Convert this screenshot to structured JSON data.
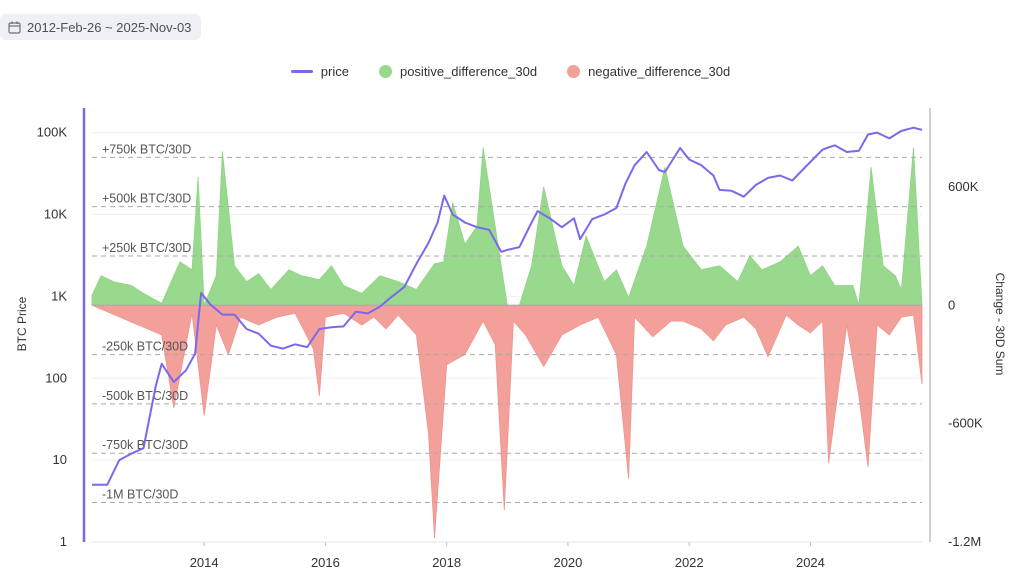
{
  "filter": {
    "date_range": "2012-Feb-26 ~ 2025-Nov-03",
    "icon": "calendar-icon"
  },
  "legend": [
    {
      "label": "price",
      "color": "#7b68ee",
      "kind": "line"
    },
    {
      "label": "positive_difference_30d",
      "color": "#98d98e",
      "kind": "dot"
    },
    {
      "label": "negative_difference_30d",
      "color": "#f4a09a",
      "kind": "dot"
    }
  ],
  "chart_data": {
    "type": "area",
    "ylabel": "BTC Price",
    "ylabel_right": "Change - 30D Sum",
    "y_left": {
      "scale": "log",
      "range": [
        1,
        200000
      ],
      "ticks": [
        "1",
        "10",
        "100",
        "1K",
        "10K",
        "100K"
      ]
    },
    "y_right": {
      "range": [
        -1200000,
        1000000
      ],
      "ticks": [
        "600K",
        "0",
        "-600K",
        "-1.2M"
      ]
    },
    "x_ticks": [
      "2014",
      "2016",
      "2018",
      "2020",
      "2022",
      "2024"
    ],
    "x_range": [
      2012.15,
      2025.84
    ],
    "grid": true,
    "legend_position": "top-center",
    "reference_lines": [
      {
        "label": "+750k BTC/30D",
        "value": 750000
      },
      {
        "label": "+500k BTC/30D",
        "value": 500000
      },
      {
        "label": "+250k BTC/30D",
        "value": 250000
      },
      {
        "label": "-250k BTC/30D",
        "value": -250000
      },
      {
        "label": "-500k BTC/30D",
        "value": -500000
      },
      {
        "label": "-750k BTC/30D",
        "value": -750000
      },
      {
        "label": "-1M BTC/30D",
        "value": -1000000
      }
    ],
    "price": {
      "x": [
        2012.15,
        2012.4,
        2012.6,
        2012.8,
        2013.0,
        2013.2,
        2013.3,
        2013.5,
        2013.7,
        2013.85,
        2013.95,
        2014.1,
        2014.3,
        2014.5,
        2014.7,
        2014.9,
        2015.1,
        2015.3,
        2015.5,
        2015.7,
        2015.9,
        2016.1,
        2016.3,
        2016.5,
        2016.7,
        2016.9,
        2017.1,
        2017.3,
        2017.5,
        2017.7,
        2017.85,
        2017.96,
        2018.1,
        2018.3,
        2018.5,
        2018.7,
        2018.9,
        2019.0,
        2019.2,
        2019.4,
        2019.5,
        2019.7,
        2019.9,
        2020.1,
        2020.2,
        2020.4,
        2020.6,
        2020.8,
        2020.95,
        2021.1,
        2021.3,
        2021.5,
        2021.6,
        2021.85,
        2022.0,
        2022.2,
        2022.4,
        2022.5,
        2022.7,
        2022.9,
        2023.1,
        2023.3,
        2023.5,
        2023.7,
        2023.9,
        2024.2,
        2024.4,
        2024.6,
        2024.8,
        2024.95,
        2025.1,
        2025.3,
        2025.5,
        2025.7,
        2025.84
      ],
      "y": [
        5,
        5,
        10,
        12,
        14,
        80,
        150,
        90,
        125,
        200,
        1100,
        800,
        600,
        600,
        400,
        350,
        250,
        230,
        260,
        240,
        400,
        420,
        430,
        650,
        620,
        750,
        1000,
        1300,
        2500,
        4500,
        8000,
        17000,
        10000,
        8000,
        7000,
        6500,
        3500,
        3700,
        4000,
        8000,
        11000,
        9000,
        7000,
        9000,
        5000,
        8800,
        10000,
        12000,
        24000,
        40000,
        58000,
        35000,
        33000,
        65000,
        47000,
        40000,
        30000,
        20000,
        19500,
        16500,
        23000,
        28000,
        30000,
        26000,
        37000,
        62000,
        70000,
        58000,
        60000,
        95000,
        100000,
        85000,
        105000,
        115000,
        108000
      ]
    },
    "positive_difference_30d": {
      "x": [
        2012.15,
        2012.3,
        2012.5,
        2012.8,
        2013.0,
        2013.3,
        2013.6,
        2013.8,
        2013.9,
        2014.0,
        2014.2,
        2014.3,
        2014.5,
        2014.7,
        2014.9,
        2015.1,
        2015.4,
        2015.6,
        2015.9,
        2016.1,
        2016.3,
        2016.6,
        2016.9,
        2017.2,
        2017.5,
        2017.8,
        2017.95,
        2018.1,
        2018.3,
        2018.5,
        2018.6,
        2018.8,
        2019.0,
        2019.2,
        2019.4,
        2019.6,
        2019.9,
        2020.1,
        2020.3,
        2020.6,
        2020.8,
        2021.0,
        2021.3,
        2021.6,
        2021.75,
        2021.9,
        2022.2,
        2022.5,
        2022.8,
        2023.0,
        2023.2,
        2023.5,
        2023.8,
        2024.0,
        2024.2,
        2024.4,
        2024.7,
        2024.8,
        2025.0,
        2025.2,
        2025.4,
        2025.5,
        2025.7,
        2025.84
      ],
      "y": [
        50000,
        150000,
        120000,
        100000,
        60000,
        10000,
        220000,
        180000,
        650000,
        0,
        150000,
        780000,
        200000,
        120000,
        160000,
        80000,
        180000,
        150000,
        130000,
        200000,
        100000,
        60000,
        150000,
        120000,
        80000,
        210000,
        220000,
        520000,
        310000,
        400000,
        800000,
        400000,
        0,
        0,
        200000,
        600000,
        200000,
        100000,
        350000,
        120000,
        180000,
        40000,
        300000,
        700000,
        500000,
        300000,
        180000,
        200000,
        120000,
        250000,
        180000,
        220000,
        300000,
        150000,
        200000,
        100000,
        100000,
        0,
        700000,
        200000,
        150000,
        80000,
        800000,
        0
      ]
    },
    "negative_difference_30d": {
      "x": [
        2012.15,
        2013.3,
        2013.5,
        2013.8,
        2014.0,
        2014.2,
        2014.4,
        2014.6,
        2014.9,
        2015.2,
        2015.5,
        2015.8,
        2015.9,
        2016.0,
        2016.3,
        2016.6,
        2016.8,
        2017.0,
        2017.2,
        2017.5,
        2017.7,
        2017.8,
        2018.0,
        2018.3,
        2018.6,
        2018.8,
        2018.95,
        2019.1,
        2019.3,
        2019.6,
        2019.9,
        2020.2,
        2020.5,
        2020.8,
        2021.0,
        2021.1,
        2021.4,
        2021.7,
        2021.9,
        2022.2,
        2022.4,
        2022.6,
        2022.9,
        2023.1,
        2023.3,
        2023.6,
        2023.8,
        2024.0,
        2024.2,
        2024.3,
        2024.6,
        2024.8,
        2024.95,
        2025.1,
        2025.3,
        2025.5,
        2025.7,
        2025.84
      ],
      "y": [
        0,
        -150000,
        -520000,
        -40000,
        -560000,
        -100000,
        -250000,
        -60000,
        -100000,
        -60000,
        -40000,
        -220000,
        -460000,
        -60000,
        -40000,
        -100000,
        -60000,
        -120000,
        -50000,
        -150000,
        -650000,
        -1180000,
        -300000,
        -250000,
        -80000,
        -200000,
        -1040000,
        -80000,
        -150000,
        -310000,
        -150000,
        -100000,
        -60000,
        -250000,
        -880000,
        -60000,
        -160000,
        -80000,
        -80000,
        -120000,
        -180000,
        -100000,
        -60000,
        -120000,
        -260000,
        -50000,
        -100000,
        -140000,
        -80000,
        -800000,
        -100000,
        -460000,
        -820000,
        -100000,
        -150000,
        -60000,
        -50000,
        -400000
      ]
    }
  }
}
